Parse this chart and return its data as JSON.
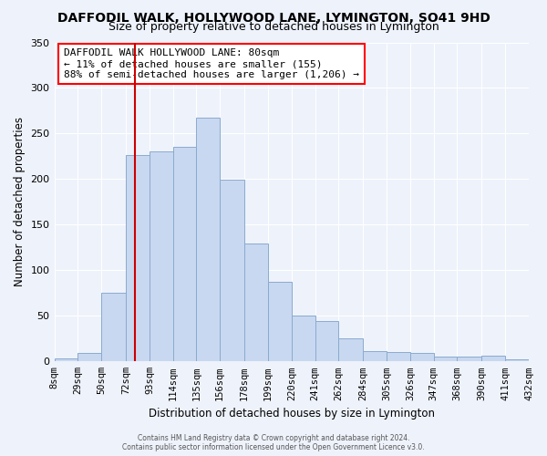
{
  "title": "DAFFODIL WALK, HOLLYWOOD LANE, LYMINGTON, SO41 9HD",
  "subtitle": "Size of property relative to detached houses in Lymington",
  "xlabel": "Distribution of detached houses by size in Lymington",
  "ylabel": "Number of detached properties",
  "bar_color": "#c8d8f0",
  "bar_edge_color": "#8aabcf",
  "background_color": "#eef2fb",
  "grid_color": "#ffffff",
  "vline_color": "#cc0000",
  "vline_x": 80,
  "bin_edges": [
    8,
    29,
    50,
    72,
    93,
    114,
    135,
    156,
    178,
    199,
    220,
    241,
    262,
    284,
    305,
    326,
    347,
    368,
    390,
    411,
    432
  ],
  "bar_heights": [
    3,
    9,
    75,
    226,
    230,
    235,
    267,
    199,
    129,
    87,
    50,
    44,
    25,
    11,
    10,
    9,
    5,
    5,
    6,
    2
  ],
  "tick_labels": [
    "8sqm",
    "29sqm",
    "50sqm",
    "72sqm",
    "93sqm",
    "114sqm",
    "135sqm",
    "156sqm",
    "178sqm",
    "199sqm",
    "220sqm",
    "241sqm",
    "262sqm",
    "284sqm",
    "305sqm",
    "326sqm",
    "347sqm",
    "368sqm",
    "390sqm",
    "411sqm",
    "432sqm"
  ],
  "ylim": [
    0,
    350
  ],
  "yticks": [
    0,
    50,
    100,
    150,
    200,
    250,
    300,
    350
  ],
  "annotation_title": "DAFFODIL WALK HOLLYWOOD LANE: 80sqm",
  "annotation_line1": "← 11% of detached houses are smaller (155)",
  "annotation_line2": "88% of semi-detached houses are larger (1,206) →",
  "footer1": "Contains HM Land Registry data © Crown copyright and database right 2024.",
  "footer2": "Contains public sector information licensed under the Open Government Licence v3.0."
}
